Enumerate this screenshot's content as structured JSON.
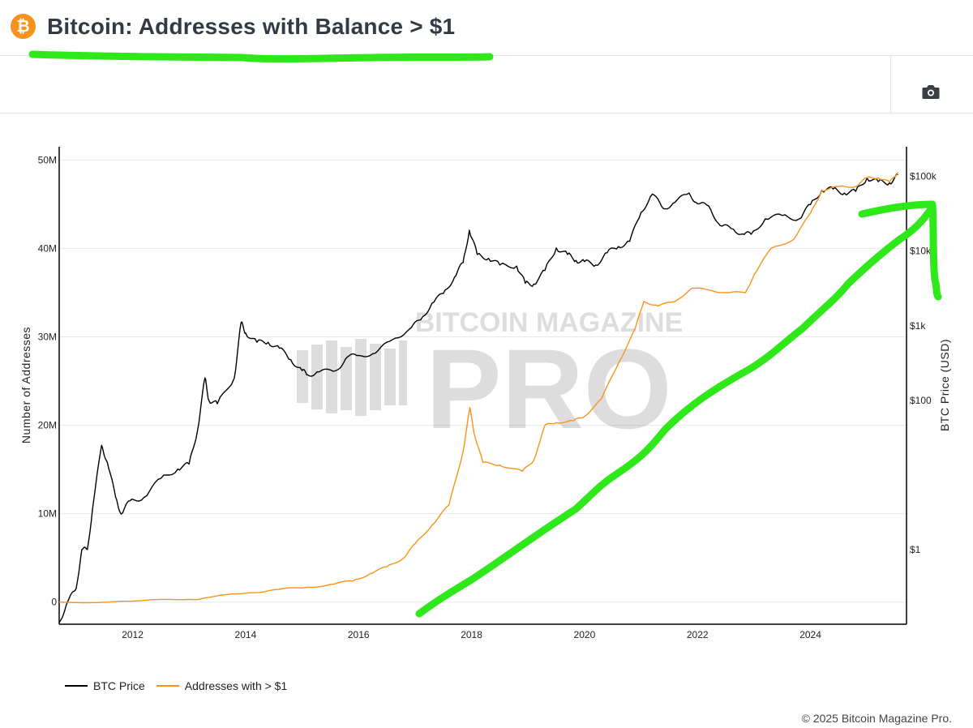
{
  "header": {
    "title": "Bitcoin: Addresses with Balance > $1",
    "logo_glyph": "₿"
  },
  "toolbar": {
    "camera_icon": "camera-icon"
  },
  "watermark": {
    "line1": "BITCOIN MAGAZINE",
    "line2": "PRO"
  },
  "colors": {
    "price": "#000000",
    "addresses": "#f7931a",
    "annotation": "#2ee81a",
    "brand": "#f7931a"
  },
  "chart_data": {
    "type": "line",
    "x_axis": {
      "ticks": [
        "2012",
        "2014",
        "2016",
        "2018",
        "2020",
        "2022",
        "2024"
      ],
      "range": [
        2010.7,
        2025.7
      ]
    },
    "y_left": {
      "title": "Number of Addresses",
      "ticks": [
        "0",
        "10M",
        "20M",
        "30M",
        "40M",
        "50M"
      ],
      "range": [
        -2500000,
        51500000
      ]
    },
    "y_right": {
      "title": "BTC Price (USD)",
      "scale": "log",
      "ticks": [
        "$1",
        "$100",
        "$1k",
        "$10k",
        "$100k"
      ],
      "range": [
        0.1,
        250000
      ]
    },
    "grid": true,
    "legend_placement": "bottom-left",
    "series": [
      {
        "name": "BTC Price",
        "axis": "right",
        "x": [
          2010.7,
          2010.85,
          2011.0,
          2011.1,
          2011.2,
          2011.3,
          2011.45,
          2011.55,
          2011.7,
          2011.8,
          2011.95,
          2012.2,
          2012.5,
          2012.8,
          2013.0,
          2013.15,
          2013.28,
          2013.35,
          2013.5,
          2013.8,
          2013.92,
          2014.0,
          2014.2,
          2014.4,
          2014.6,
          2014.8,
          2015.0,
          2015.1,
          2015.3,
          2015.6,
          2015.8,
          2016.0,
          2016.3,
          2016.6,
          2016.9,
          2017.1,
          2017.3,
          2017.5,
          2017.7,
          2017.85,
          2017.96,
          2018.1,
          2018.3,
          2018.5,
          2018.8,
          2018.95,
          2019.1,
          2019.3,
          2019.5,
          2019.7,
          2019.85,
          2020.0,
          2020.2,
          2020.4,
          2020.6,
          2020.8,
          2021.0,
          2021.2,
          2021.4,
          2021.6,
          2021.85,
          2022.0,
          2022.2,
          2022.4,
          2022.6,
          2022.8,
          2022.95,
          2023.2,
          2023.5,
          2023.8,
          2024.0,
          2024.2,
          2024.4,
          2024.6,
          2024.8,
          2025.0,
          2025.2,
          2025.4,
          2025.55
        ],
        "values": [
          0.06,
          0.2,
          0.3,
          1.0,
          1.0,
          4.0,
          25.0,
          15.0,
          5.0,
          3.0,
          4.5,
          5.0,
          9.0,
          12.0,
          14.0,
          40.0,
          200.0,
          100.0,
          90.0,
          200.0,
          1100.0,
          800.0,
          600.0,
          600.0,
          500.0,
          350.0,
          250.0,
          220.0,
          240.0,
          250.0,
          380.0,
          400.0,
          430.0,
          650.0,
          900.0,
          1200.0,
          2000.0,
          2700.0,
          4500.0,
          7000.0,
          19000.0,
          9000.0,
          8000.0,
          6500.0,
          6300.0,
          3700.0,
          3600.0,
          5500.0,
          11000.0,
          9000.0,
          7500.0,
          7200.0,
          6500.0,
          9500.0,
          11500.0,
          13500.0,
          33000.0,
          58000.0,
          37000.0,
          45000.0,
          60000.0,
          43000.0,
          40000.0,
          22000.0,
          20000.0,
          17000.0,
          16800.0,
          27000.0,
          30000.0,
          27000.0,
          42000.0,
          65000.0,
          68000.0,
          60000.0,
          63000.0,
          95000.0,
          85000.0,
          82000.0,
          105000.0
        ]
      },
      {
        "name": "Addresses with > $1",
        "axis": "left",
        "x": [
          2010.7,
          2012.0,
          2013.0,
          2013.3,
          2014.0,
          2014.5,
          2015.0,
          2015.5,
          2015.9,
          2016.2,
          2016.5,
          2016.8,
          2017.0,
          2017.3,
          2017.6,
          2017.85,
          2017.97,
          2018.05,
          2018.2,
          2018.5,
          2018.9,
          2019.1,
          2019.3,
          2019.5,
          2019.8,
          2020.0,
          2020.3,
          2020.6,
          2020.9,
          2021.05,
          2021.3,
          2021.6,
          2021.9,
          2022.2,
          2022.5,
          2022.85,
          2023.0,
          2023.3,
          2023.7,
          2024.0,
          2024.2,
          2024.5,
          2024.8,
          2025.0,
          2025.2,
          2025.4,
          2025.55
        ],
        "values": [
          0,
          100000,
          300000,
          500000,
          1000000,
          1400000,
          1600000,
          2000000,
          2400000,
          3200000,
          4000000,
          5000000,
          6600000,
          8700000,
          11000000,
          17000000,
          22000000,
          19000000,
          15800000,
          15500000,
          14800000,
          16000000,
          20000000,
          20300000,
          20500000,
          21000000,
          23000000,
          27000000,
          31000000,
          34000000,
          33500000,
          34000000,
          35500000,
          35300000,
          35000000,
          35000000,
          37000000,
          40000000,
          41000000,
          44000000,
          46500000,
          47000000,
          47000000,
          48000000,
          48000000,
          47500000,
          48600000
        ]
      }
    ]
  },
  "legend": [
    {
      "label": "BTC Price",
      "color": "#000000"
    },
    {
      "label": "Addresses with > $1",
      "color": "#f7931a"
    }
  ],
  "footer": {
    "copyright": "© 2025 Bitcoin Magazine Pro."
  }
}
